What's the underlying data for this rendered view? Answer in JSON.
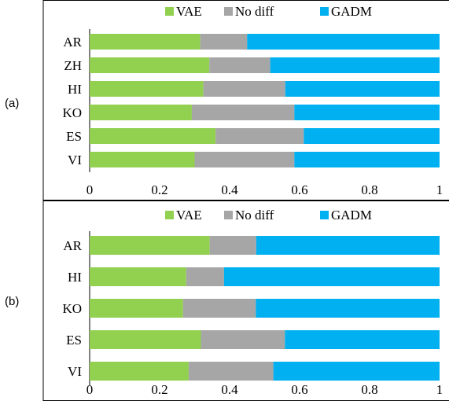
{
  "chart_data": [
    {
      "type": "bar",
      "orientation": "horizontal",
      "stacked": true,
      "panel_label": "(a)",
      "categories": [
        "AR",
        "ZH",
        "HI",
        "KO",
        "ES",
        "VI"
      ],
      "series": [
        {
          "name": "VAE",
          "color": "#92D050",
          "values": [
            0.316,
            0.342,
            0.325,
            0.292,
            0.36,
            0.3
          ]
        },
        {
          "name": "No diff",
          "color": "#A6A6A6",
          "values": [
            0.134,
            0.174,
            0.234,
            0.293,
            0.252,
            0.285
          ]
        },
        {
          "name": "GADM",
          "color": "#00B0F0",
          "values": [
            0.55,
            0.484,
            0.441,
            0.415,
            0.388,
            0.415
          ]
        }
      ],
      "xlim": [
        0,
        1
      ],
      "xticks": [
        "0",
        "0.2",
        "0.4",
        "0.6",
        "0.8",
        "1"
      ],
      "legend_position": "top"
    },
    {
      "type": "bar",
      "orientation": "horizontal",
      "stacked": true,
      "panel_label": "(b)",
      "categories": [
        "AR",
        "HI",
        "KO",
        "ES",
        "VI"
      ],
      "series": [
        {
          "name": "VAE",
          "color": "#92D050",
          "values": [
            0.343,
            0.276,
            0.267,
            0.318,
            0.283
          ]
        },
        {
          "name": "No diff",
          "color": "#A6A6A6",
          "values": [
            0.133,
            0.108,
            0.208,
            0.24,
            0.242
          ]
        },
        {
          "name": "GADM",
          "color": "#00B0F0",
          "values": [
            0.524,
            0.616,
            0.525,
            0.442,
            0.475
          ]
        }
      ],
      "xlim": [
        0,
        1
      ],
      "xticks": [
        "0",
        "0.2",
        "0.4",
        "0.6",
        "0.8",
        "1"
      ],
      "legend_position": "top"
    }
  ]
}
